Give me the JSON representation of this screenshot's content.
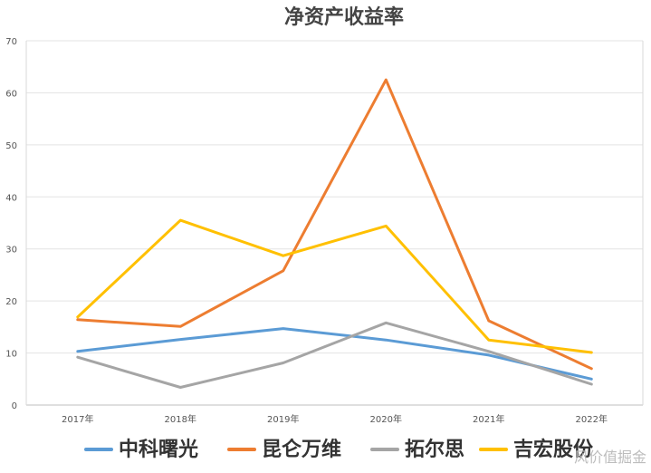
{
  "chart_data": {
    "type": "line",
    "title": "净资产收益率",
    "xlabel": "",
    "ylabel": "",
    "categories": [
      "2017年",
      "2018年",
      "2019年",
      "2020年",
      "2021年",
      "2022年"
    ],
    "ylim": [
      0,
      70
    ],
    "yticks": [
      0,
      10,
      20,
      30,
      40,
      50,
      60,
      70
    ],
    "grid": true,
    "legend_position": "bottom",
    "series": [
      {
        "name": "中科曙光",
        "color": "#5B9BD5",
        "values": [
          10.3,
          12.6,
          14.7,
          12.5,
          9.6,
          5.0
        ]
      },
      {
        "name": "昆仑万维",
        "color": "#ED7D31",
        "values": [
          16.4,
          15.1,
          25.8,
          62.5,
          16.2,
          7.0
        ]
      },
      {
        "name": "拓尔思",
        "color": "#A5A5A5",
        "values": [
          9.2,
          3.4,
          8.1,
          15.8,
          10.3,
          4.0
        ]
      },
      {
        "name": "吉宏股份",
        "color": "#FFC000",
        "values": [
          16.9,
          35.5,
          28.7,
          34.4,
          12.5,
          10.1
        ]
      }
    ]
  },
  "watermark": "风价值掘金"
}
